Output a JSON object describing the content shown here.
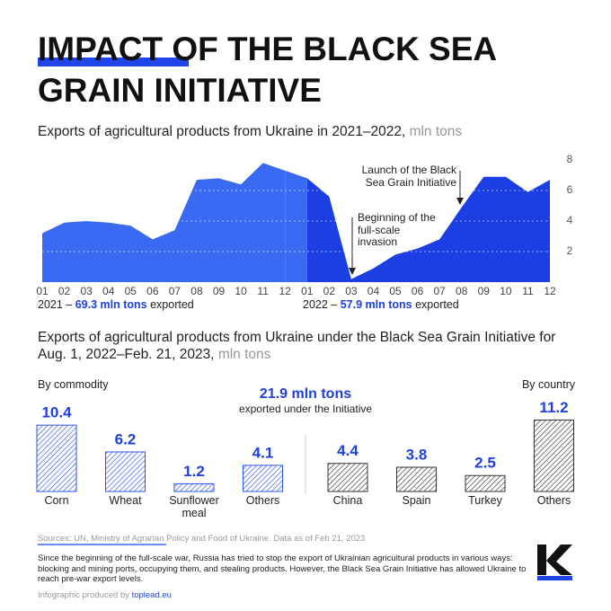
{
  "title": "IMPACT OF THE BLACK SEA GRAIN INITIATIVE",
  "chart_data": [
    {
      "type": "area",
      "subtitle": "Exports of agricultural products from Ukraine in 2021–2022,",
      "unit": "mln tons",
      "categories": [
        "01",
        "02",
        "03",
        "04",
        "05",
        "06",
        "07",
        "08",
        "09",
        "10",
        "11",
        "12",
        "01",
        "02",
        "03",
        "04",
        "05",
        "06",
        "07",
        "08",
        "09",
        "10",
        "11",
        "12"
      ],
      "series": [
        {
          "name": "2021 –",
          "total": "69.3 mln tons",
          "total_note": "exported",
          "color": "#3b6af2",
          "values": [
            3.2,
            3.9,
            4.0,
            3.9,
            3.7,
            2.8,
            3.4,
            6.7,
            6.8,
            6.4,
            7.8,
            7.3,
            null,
            null,
            null,
            null,
            null,
            null,
            null,
            null,
            null,
            null,
            null,
            null
          ]
        },
        {
          "name": "2022 –",
          "total": "57.9 mln tons",
          "total_note": "exported",
          "color": "#1c3fe3",
          "values": [
            null,
            null,
            null,
            null,
            null,
            null,
            null,
            null,
            null,
            null,
            null,
            null,
            6.8,
            5.6,
            0.2,
            0.9,
            1.8,
            2.2,
            2.8,
            4.9,
            6.9,
            6.9,
            5.9,
            6.7
          ]
        }
      ],
      "ylim": [
        0,
        8
      ],
      "yticks": [
        2,
        4,
        6,
        8
      ],
      "grid": true,
      "annotations": [
        "Launch of the Black Sea Grain Initiative",
        "Beginning of the full-scale invasion"
      ]
    },
    {
      "type": "bar",
      "subtitle": "Exports of agricultural products from Ukraine under the Black Sea Grain Initiative for Aug. 1, 2022–Feb. 21, 2023,",
      "unit": "mln tons",
      "total": "21.9 mln tons",
      "total_note": "exported under the Initiative",
      "groups": [
        {
          "name": "By commodity",
          "color": "#2f55e8",
          "categories": [
            "Corn",
            "Wheat",
            "Sunflower meal",
            "Others"
          ],
          "values": [
            10.4,
            6.2,
            1.2,
            4.1
          ]
        },
        {
          "name": "By country",
          "color": "#333333",
          "categories": [
            "China",
            "Spain",
            "Turkey",
            "Others"
          ],
          "values": [
            4.4,
            3.8,
            2.5,
            11.2
          ]
        }
      ]
    }
  ],
  "footer": {
    "sources": "Sources: UN, Ministry of Agrarian Policy and Food of Ukraine. Data as of Feb 21, 2023",
    "note": "Since the beginning of the full-scale war, Russia has tried to stop the export of Ukrainian agricultural products in various ways: blocking and mining ports, occupying them, and stealing products. However, the Black Sea Grain Initiative has allowed Ukraine to reach pre-war export levels.",
    "credit": "Infographic produced by",
    "credit_link": "toplead.eu"
  }
}
